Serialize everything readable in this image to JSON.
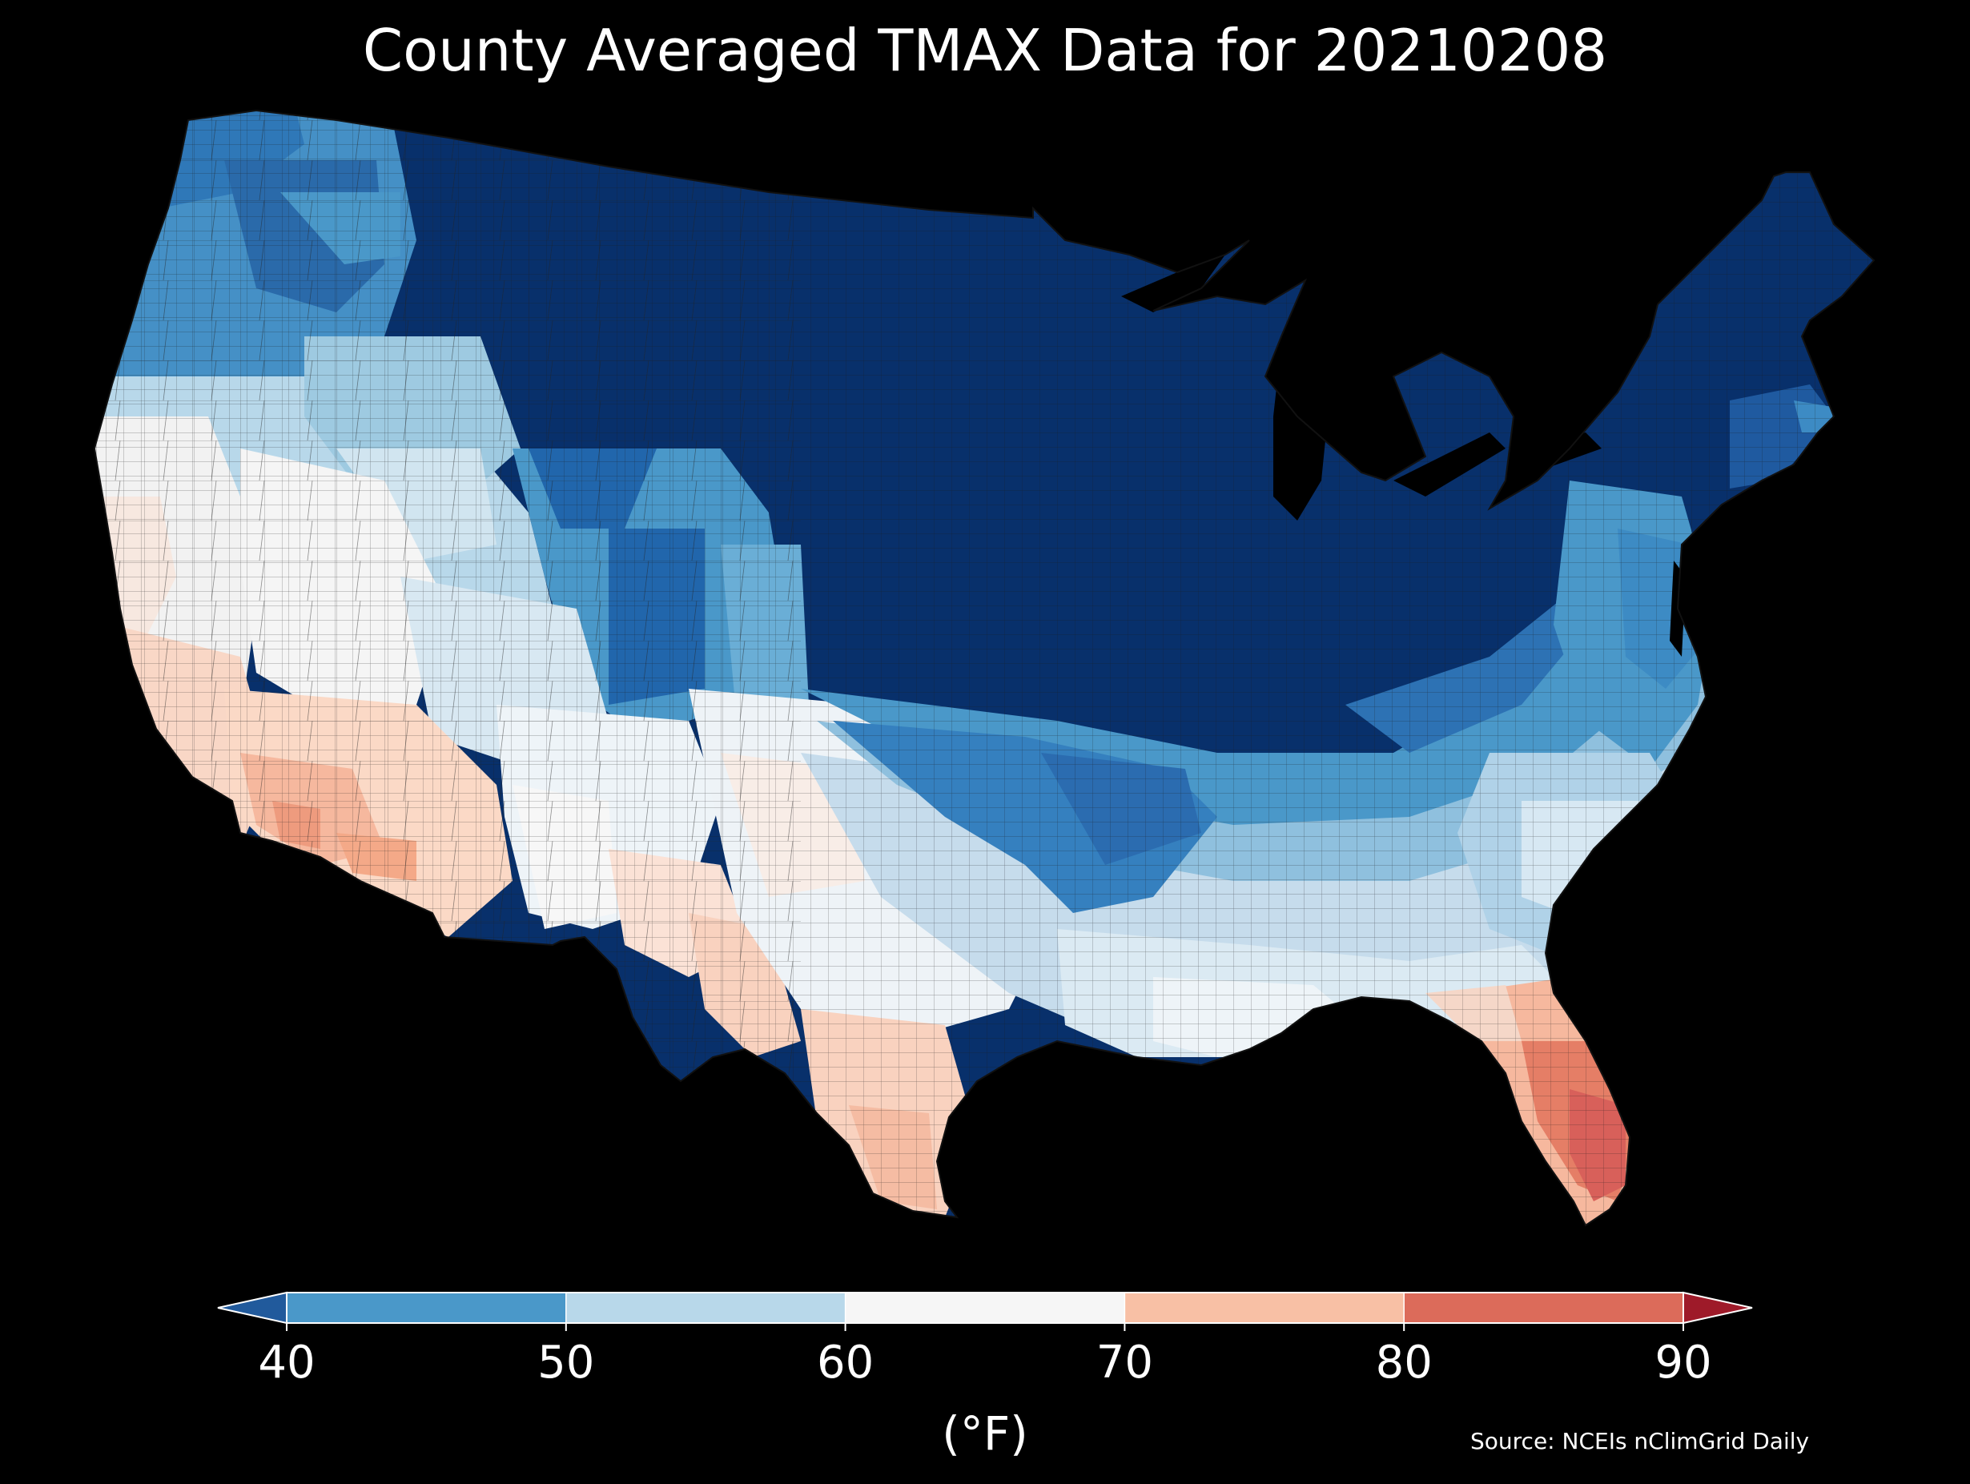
{
  "title": "County Averaged TMAX Data for 20210208",
  "colorbar": {
    "unit_label": "(°F)",
    "ticks": [
      "40",
      "50",
      "60",
      "70",
      "80",
      "90"
    ],
    "bins": [
      {
        "from": 40,
        "to": 50,
        "color": "#4a98c9"
      },
      {
        "from": 50,
        "to": 60,
        "color": "#b8d8ea"
      },
      {
        "from": 60,
        "to": 70,
        "color": "#f6f6f6"
      },
      {
        "from": 70,
        "to": 80,
        "color": "#f8c0a5"
      },
      {
        "from": 80,
        "to": 90,
        "color": "#dc6b5a"
      }
    ],
    "extend_low_color": "#215a9c",
    "extend_high_color": "#9e1a29",
    "orientation": "horizontal",
    "extend": "both"
  },
  "source_note": "Source: NCEIs nClimGrid Daily",
  "map": {
    "region": "Contiguous United States",
    "unit": "county",
    "background_color": "#000000",
    "border_color": "#222222"
  }
}
